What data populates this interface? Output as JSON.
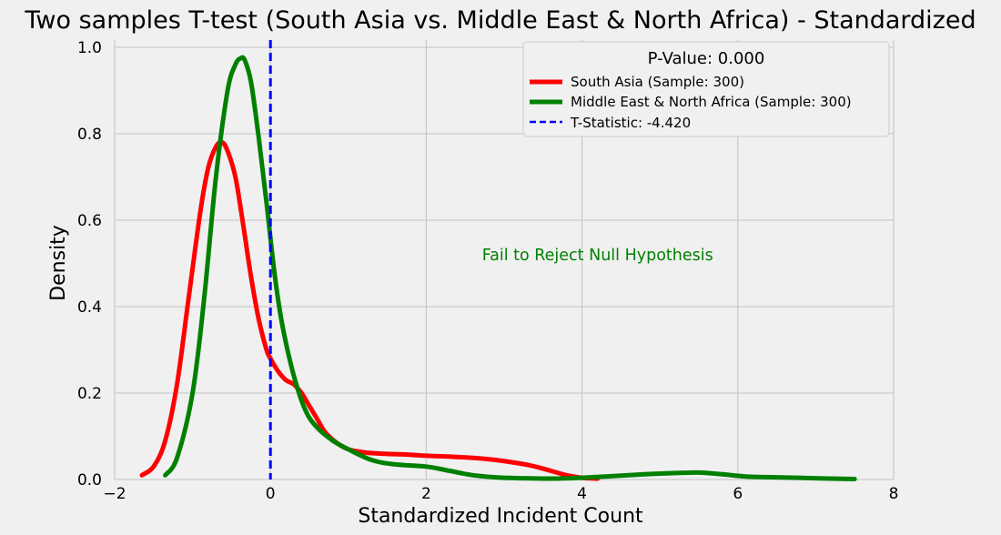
{
  "chart_data": {
    "type": "line",
    "title": "Two samples T-test (South Asia vs. Middle East & North Africa) - Standardized",
    "xlabel": "Standardized Incident Count",
    "ylabel": "Density",
    "xlim": [
      -2,
      8
    ],
    "ylim": [
      0,
      1.0
    ],
    "x_ticks": [
      "−2",
      "0",
      "2",
      "4",
      "6",
      "8"
    ],
    "x_tick_values": [
      -2,
      0,
      2,
      4,
      6,
      8
    ],
    "y_ticks": [
      "0.0",
      "0.2",
      "0.4",
      "0.6",
      "0.8",
      "1.0"
    ],
    "y_tick_values": [
      0,
      0.2,
      0.4,
      0.6,
      0.8,
      1.0
    ],
    "grid": true,
    "legend": {
      "title": "P-Value: 0.000",
      "placement": "top-right"
    },
    "series": [
      {
        "name": "South Asia (Sample: 300)",
        "color": "#ff0000",
        "x": [
          -1.65,
          -1.5,
          -1.35,
          -1.2,
          -1.05,
          -0.9,
          -0.8,
          -0.7,
          -0.62,
          -0.55,
          -0.45,
          -0.35,
          -0.25,
          -0.15,
          -0.05,
          0.0,
          0.1,
          0.2,
          0.3,
          0.4,
          0.5,
          0.6,
          0.7,
          0.85,
          1.0,
          1.2,
          1.4,
          1.7,
          2.0,
          2.3,
          2.6,
          2.9,
          3.2,
          3.4,
          3.6,
          3.8,
          4.0,
          4.2
        ],
        "y": [
          0.01,
          0.03,
          0.09,
          0.22,
          0.42,
          0.62,
          0.72,
          0.77,
          0.78,
          0.76,
          0.7,
          0.59,
          0.47,
          0.37,
          0.3,
          0.28,
          0.25,
          0.23,
          0.22,
          0.2,
          0.17,
          0.14,
          0.11,
          0.085,
          0.07,
          0.063,
          0.06,
          0.058,
          0.055,
          0.053,
          0.05,
          0.045,
          0.037,
          0.03,
          0.02,
          0.01,
          0.004,
          0.002
        ]
      },
      {
        "name": "Middle East & North Africa (Sample: 300)",
        "color": "#008000",
        "x": [
          -1.35,
          -1.2,
          -1.0,
          -0.85,
          -0.7,
          -0.55,
          -0.45,
          -0.38,
          -0.33,
          -0.25,
          -0.15,
          -0.05,
          0.05,
          0.15,
          0.3,
          0.45,
          0.6,
          0.8,
          1.0,
          1.3,
          1.6,
          2.0,
          2.3,
          2.6,
          2.9,
          3.2,
          3.6,
          4.0,
          4.4,
          4.8,
          5.2,
          5.5,
          5.8,
          6.1,
          6.5,
          7.0,
          7.5
        ],
        "y": [
          0.01,
          0.05,
          0.2,
          0.42,
          0.7,
          0.9,
          0.96,
          0.975,
          0.97,
          0.92,
          0.79,
          0.64,
          0.48,
          0.36,
          0.24,
          0.16,
          0.12,
          0.09,
          0.07,
          0.045,
          0.035,
          0.03,
          0.02,
          0.01,
          0.005,
          0.003,
          0.002,
          0.004,
          0.008,
          0.012,
          0.015,
          0.016,
          0.012,
          0.007,
          0.005,
          0.003,
          0.001
        ]
      }
    ],
    "vline": {
      "name": "T-Statistic: -4.420",
      "x": 0,
      "color": "#0000ff"
    },
    "annotation": {
      "text": "Fail to Reject Null Hypothesis",
      "x": 4.2,
      "y": 0.52,
      "color": "#008000"
    }
  }
}
